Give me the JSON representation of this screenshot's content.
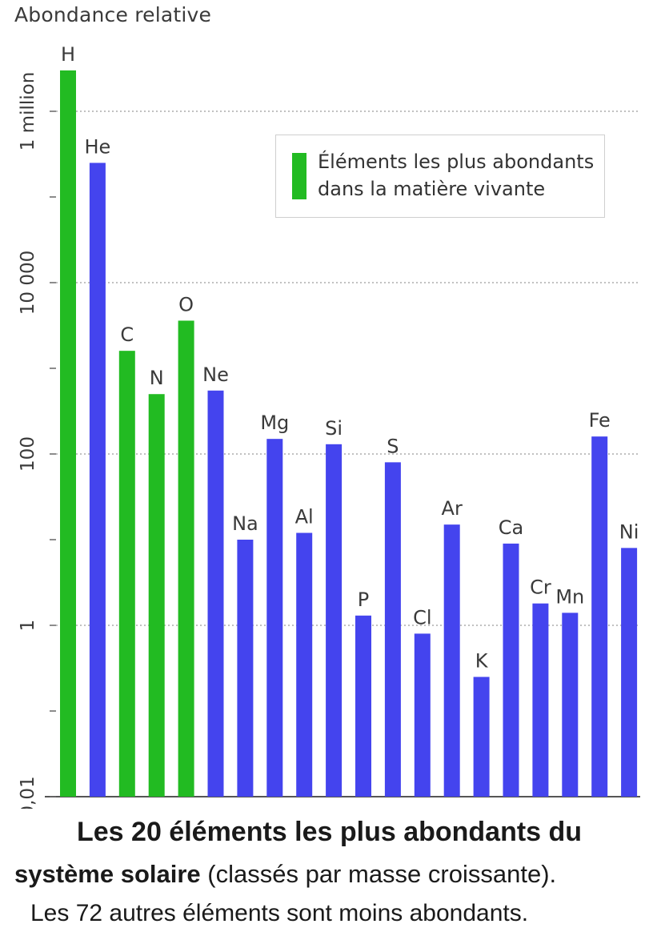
{
  "chart_data": {
    "type": "bar",
    "ylabel": "Abondance relative",
    "scale": "log",
    "ylim": [
      0.01,
      5000000
    ],
    "yticks": [
      {
        "value": 0.01,
        "label": "0,01"
      },
      {
        "value": 1,
        "label": "1"
      },
      {
        "value": 100,
        "label": "100"
      },
      {
        "value": 10000,
        "label": "10 000"
      },
      {
        "value": 1000000,
        "label": "1 million"
      }
    ],
    "grid": true,
    "categories": [
      "H",
      "He",
      "C",
      "N",
      "O",
      "Ne",
      "Na",
      "Mg",
      "Al",
      "Si",
      "P",
      "S",
      "Cl",
      "Ar",
      "K",
      "Ca",
      "Cr",
      "Mn",
      "Fe",
      "Ni"
    ],
    "values": [
      3000000,
      250000,
      1600,
      500,
      3600,
      550,
      10,
      150,
      12,
      130,
      1.3,
      80,
      0.8,
      15,
      0.25,
      9,
      1.8,
      1.4,
      160,
      8
    ],
    "highlight": [
      true,
      false,
      true,
      true,
      true,
      false,
      false,
      false,
      false,
      false,
      false,
      false,
      false,
      false,
      false,
      false,
      false,
      false,
      false,
      false
    ],
    "colors": {
      "highlight": "#22bb22",
      "default": "#4444ee"
    },
    "legend": {
      "label": "Éléments les plus abondants dans la matière vivante",
      "line1": "Éléments les plus abondants",
      "line2": "dans la matière vivante",
      "placement": "top-right"
    }
  },
  "caption": {
    "line1": "Les 20 éléments les plus abondants du",
    "line2_bold": "système solaire",
    "line2_rest": " (classés par masse croissante).",
    "line3": "Les 72 autres éléments sont moins abondants."
  }
}
